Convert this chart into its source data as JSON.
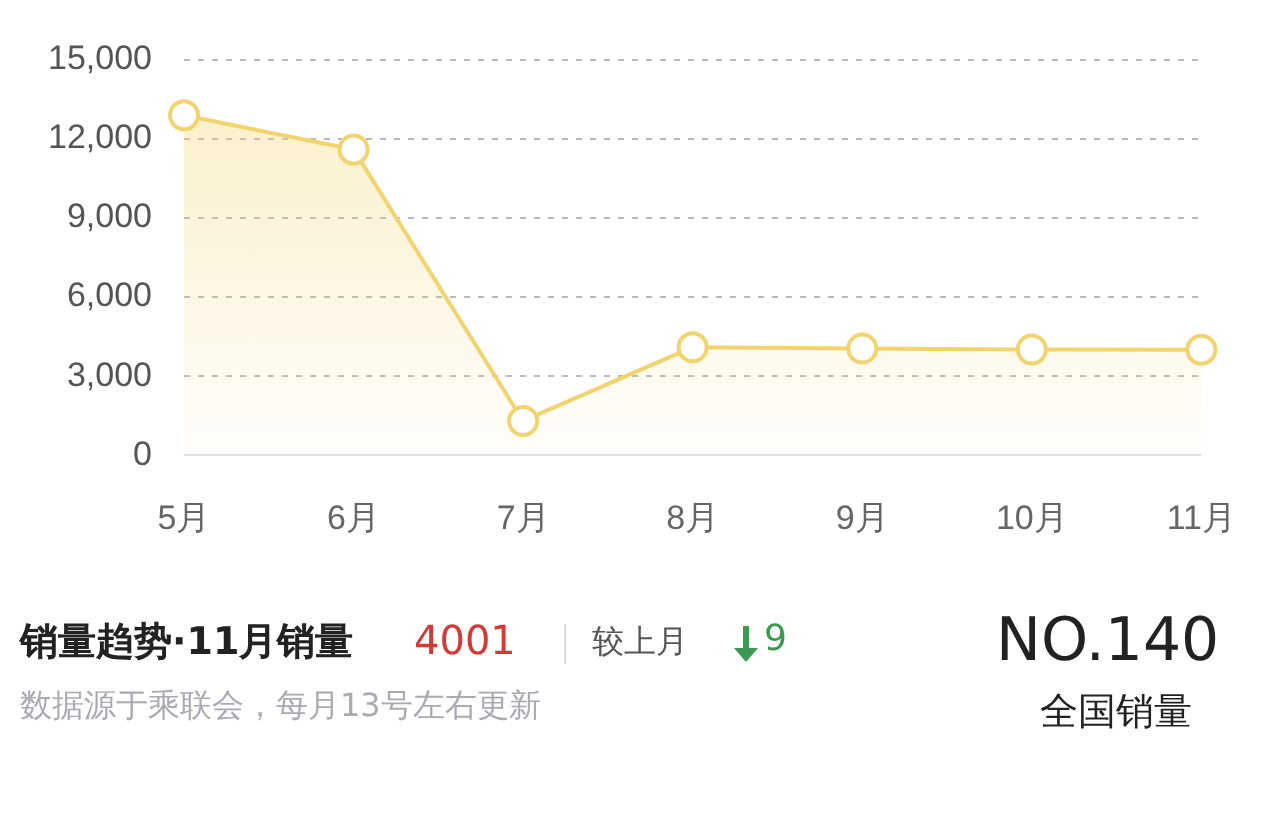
{
  "chart_data": {
    "type": "area",
    "categories": [
      "5月",
      "6月",
      "7月",
      "8月",
      "9月",
      "10月",
      "11月"
    ],
    "series": [
      {
        "color": "#f2d46e",
        "values": [
          12900,
          11600,
          1300,
          4100,
          4050,
          4010,
          4001
        ]
      }
    ],
    "ylim": [
      0,
      15000
    ],
    "yticks": [
      0,
      {
        "value": 3000,
        "label": "3,000"
      },
      {
        "value": 6000,
        "label": "6,000"
      },
      {
        "value": 9000,
        "label": "9,000"
      },
      {
        "value": 12000,
        "label": "12,000"
      },
      {
        "value": 15000,
        "label": "15,000"
      }
    ],
    "grid": "y",
    "legend": false,
    "marker": "circle",
    "line_style": "solid",
    "annotations": [
      "销量趋势·11月销量",
      "4001",
      "较上月",
      "9",
      "数据源于乘联会，每月13号左右更新",
      "NO.140",
      "全国销量"
    ]
  }
}
